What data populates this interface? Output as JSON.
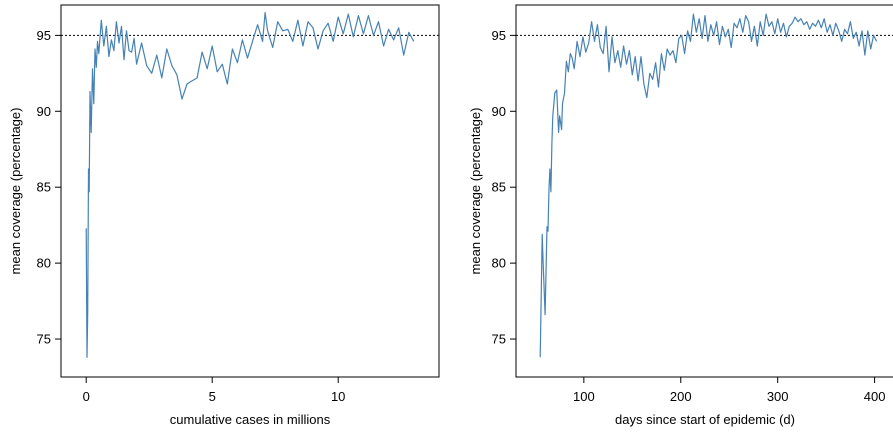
{
  "figure": {
    "panels": [
      {
        "xlabel": "cumulative cases in millions",
        "ylabel": "mean coverage (percentage)"
      },
      {
        "xlabel": "days since start of epidemic (d)",
        "ylabel": "mean coverage (percentage)"
      }
    ]
  },
  "colors": {
    "series": "#4682b4",
    "reference": "#000000",
    "frame": "#000000"
  },
  "chart_data": [
    {
      "type": "line",
      "title": "",
      "xlabel": "cumulative cases in millions",
      "ylabel": "mean coverage (percentage)",
      "xlim": [
        -1,
        14
      ],
      "ylim": [
        72.5,
        97
      ],
      "xticks": [
        0,
        5,
        10
      ],
      "yticks": [
        75,
        80,
        85,
        90,
        95
      ],
      "grid": false,
      "legend": "none",
      "reference_line": {
        "y": 95,
        "style": "dotted"
      },
      "series": [
        {
          "x": [
            0.0,
            0.03,
            0.06,
            0.09,
            0.12,
            0.15,
            0.2,
            0.25,
            0.3,
            0.35,
            0.4,
            0.45,
            0.5,
            0.6,
            0.7,
            0.8,
            0.9,
            1.0,
            1.1,
            1.2,
            1.3,
            1.4,
            1.5,
            1.6,
            1.7,
            1.8,
            1.9,
            2.0,
            2.2,
            2.4,
            2.6,
            2.8,
            3.0,
            3.2,
            3.4,
            3.6,
            3.8,
            4.0,
            4.2,
            4.4,
            4.6,
            4.8,
            5.0,
            5.2,
            5.4,
            5.6,
            5.8,
            6.0,
            6.2,
            6.4,
            6.6,
            6.8,
            7.0,
            7.1,
            7.2,
            7.4,
            7.6,
            7.8,
            8.0,
            8.2,
            8.4,
            8.6,
            8.8,
            9.0,
            9.2,
            9.4,
            9.6,
            9.8,
            10.0,
            10.2,
            10.4,
            10.6,
            10.8,
            11.0,
            11.2,
            11.4,
            11.6,
            11.8,
            12.0,
            12.2,
            12.4,
            12.6,
            12.8,
            13.0
          ],
          "y": [
            82.3,
            73.8,
            76.6,
            86.2,
            84.7,
            91.3,
            88.6,
            92.8,
            90.5,
            94.1,
            92.9,
            94.6,
            93.8,
            96.0,
            94.3,
            95.6,
            93.6,
            94.7,
            94.0,
            95.9,
            94.5,
            95.6,
            93.4,
            95.3,
            94.0,
            93.9,
            94.8,
            93.1,
            94.5,
            93.0,
            92.5,
            93.7,
            92.2,
            94.1,
            93.0,
            92.4,
            90.8,
            91.8,
            92.0,
            92.2,
            93.9,
            92.8,
            94.3,
            92.6,
            93.1,
            91.8,
            94.1,
            93.2,
            94.7,
            93.5,
            94.6,
            95.7,
            94.6,
            96.5,
            95.3,
            94.2,
            95.9,
            95.3,
            95.4,
            94.6,
            96.0,
            94.3,
            95.9,
            95.5,
            94.1,
            95.3,
            95.8,
            94.6,
            96.2,
            95.1,
            96.4,
            94.9,
            96.3,
            95.1,
            96.3,
            95.0,
            95.9,
            94.3,
            95.4,
            94.7,
            95.5,
            93.7,
            95.2,
            94.6
          ]
        }
      ]
    },
    {
      "type": "line",
      "title": "",
      "xlabel": "days since start of epidemic (d)",
      "ylabel": "mean coverage (percentage)",
      "xlim": [
        30,
        420
      ],
      "ylim": [
        72.5,
        97
      ],
      "xticks": [
        100,
        200,
        300,
        400
      ],
      "yticks": [
        75,
        80,
        85,
        90,
        95
      ],
      "grid": false,
      "legend": "none",
      "reference_line": {
        "y": 95,
        "style": "dotted"
      },
      "series": [
        {
          "x": [
            55,
            57,
            58,
            60,
            62,
            63,
            64,
            65,
            66,
            67,
            68,
            70,
            72,
            74,
            75,
            77,
            78,
            80,
            82,
            84,
            86,
            88,
            90,
            93,
            96,
            99,
            102,
            105,
            108,
            111,
            114,
            117,
            120,
            123,
            126,
            129,
            132,
            135,
            138,
            141,
            144,
            147,
            150,
            153,
            156,
            159,
            162,
            165,
            168,
            171,
            174,
            177,
            180,
            183,
            186,
            189,
            192,
            195,
            198,
            201,
            204,
            207,
            210,
            213,
            216,
            219,
            222,
            225,
            228,
            231,
            234,
            237,
            240,
            243,
            246,
            249,
            252,
            255,
            258,
            261,
            264,
            267,
            270,
            273,
            276,
            279,
            282,
            285,
            288,
            291,
            294,
            297,
            300,
            303,
            306,
            309,
            312,
            315,
            318,
            321,
            324,
            327,
            330,
            333,
            336,
            339,
            342,
            345,
            348,
            351,
            354,
            357,
            360,
            363,
            366,
            369,
            372,
            375,
            378,
            381,
            384,
            387,
            390,
            393,
            396,
            399,
            402
          ],
          "y": [
            73.8,
            81.9,
            80.1,
            76.6,
            82.4,
            82.1,
            84.9,
            86.2,
            84.7,
            87.9,
            89.7,
            91.2,
            91.4,
            88.6,
            89.7,
            88.8,
            90.5,
            91.2,
            93.3,
            92.6,
            93.8,
            93.5,
            92.8,
            94.6,
            93.6,
            94.9,
            93.9,
            94.5,
            95.9,
            94.6,
            95.7,
            94.2,
            93.8,
            95.6,
            92.6,
            94.9,
            93.2,
            94.0,
            92.9,
            94.3,
            93.1,
            94.0,
            92.4,
            93.6,
            92.0,
            93.6,
            91.8,
            90.9,
            92.5,
            92.1,
            93.2,
            91.6,
            93.8,
            92.7,
            94.1,
            93.7,
            94.0,
            93.2,
            94.8,
            95.0,
            93.8,
            95.3,
            94.6,
            96.4,
            95.2,
            96.1,
            94.8,
            96.3,
            94.6,
            95.7,
            95.0,
            95.9,
            94.4,
            95.6,
            94.9,
            95.4,
            94.2,
            95.8,
            95.5,
            96.1,
            95.2,
            96.3,
            95.9,
            94.6,
            95.6,
            94.3,
            95.9,
            95.0,
            96.4,
            95.6,
            95.9,
            95.1,
            96.1,
            95.2,
            95.8,
            94.9,
            95.6,
            95.8,
            96.2,
            95.9,
            96.1,
            95.7,
            95.9,
            95.4,
            95.8,
            95.6,
            96.0,
            95.5,
            96.1,
            95.2,
            95.7,
            95.0,
            95.8,
            95.3,
            94.6,
            95.4,
            95.1,
            95.9,
            94.8,
            95.2,
            94.3,
            95.3,
            93.7,
            95.3,
            94.1,
            95.0,
            94.6
          ]
        }
      ]
    }
  ]
}
